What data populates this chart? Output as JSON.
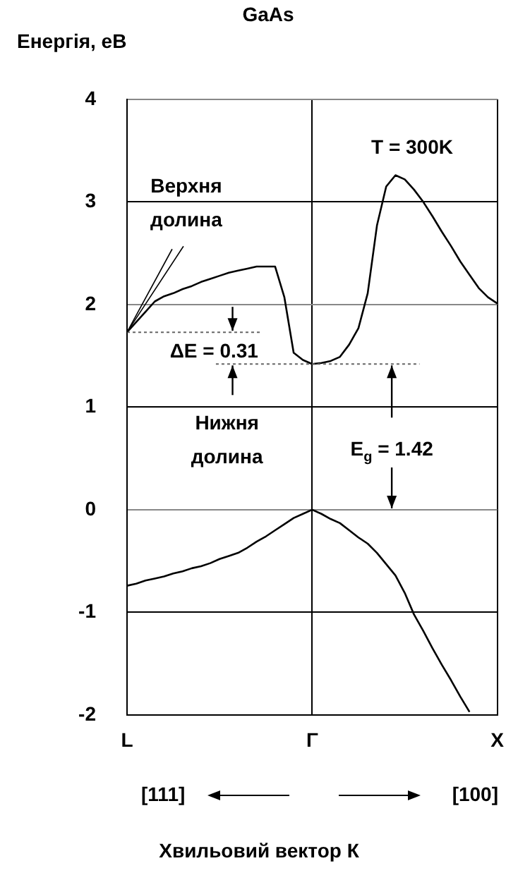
{
  "chart_data": {
    "type": "line",
    "title": "GaAs",
    "ylabel": "Енергія, еВ",
    "xlabel": "Хвильовий вектор К",
    "categories": [
      "L",
      null,
      null,
      null,
      null,
      null,
      null,
      null,
      null,
      null,
      null,
      null,
      null,
      null,
      null,
      null,
      null,
      null,
      null,
      null,
      "Γ",
      null,
      null,
      null,
      null,
      null,
      null,
      null,
      null,
      null,
      null,
      null,
      null,
      null,
      null,
      null,
      null,
      null,
      null,
      null,
      "X"
    ],
    "ylim": [
      -2,
      4
    ],
    "yticks": [
      -2,
      -1,
      0,
      1,
      2,
      3,
      4
    ],
    "grid": true,
    "marker": "none",
    "line_style": "solid",
    "series": [
      {
        "color": "#000000",
        "values": [
          1.73,
          1.83,
          1.93,
          2.03,
          2.08,
          2.11,
          2.15,
          2.18,
          2.22,
          2.25,
          2.28,
          2.31,
          2.33,
          2.35,
          2.37,
          2.37,
          2.37,
          2.07,
          1.53,
          1.46,
          1.42,
          1.43,
          1.45,
          1.49,
          1.61,
          1.77,
          2.11,
          2.77,
          3.15,
          3.26,
          3.22,
          3.12,
          3.0,
          2.86,
          2.71,
          2.57,
          2.42,
          2.29,
          2.16,
          2.07,
          2.01
        ]
      },
      {
        "color": "#000000",
        "values": [
          -0.74,
          -0.72,
          -0.69,
          -0.67,
          -0.65,
          -0.62,
          -0.6,
          -0.57,
          -0.55,
          -0.52,
          -0.48,
          -0.45,
          -0.42,
          -0.37,
          -0.31,
          -0.26,
          -0.2,
          -0.14,
          -0.08,
          -0.04,
          0,
          -0.04,
          -0.09,
          -0.13,
          -0.2,
          -0.27,
          -0.33,
          -0.42,
          -0.53,
          -0.64,
          -0.81,
          -1.02,
          -1.18,
          -1.35,
          -1.51,
          -1.66,
          -1.82,
          -1.97,
          null,
          null,
          null
        ]
      }
    ],
    "ref_lines": [
      {
        "axis": "y",
        "value": 1.73,
        "line_style": "dotted"
      },
      {
        "axis": "y",
        "value": 1.42,
        "line_style": "dotted"
      }
    ],
    "annotations": [
      "T = 300K",
      {
        "text": "Верхня долина",
        "x": "L",
        "y": 1.73
      },
      "Нижня долина",
      {
        "text": "ΔE = 0.31",
        "y": 1.42
      },
      {
        "text": "E$_{g}$ = 1.42",
        "y": 1.42
      },
      "[111]",
      "[100]"
    ]
  }
}
